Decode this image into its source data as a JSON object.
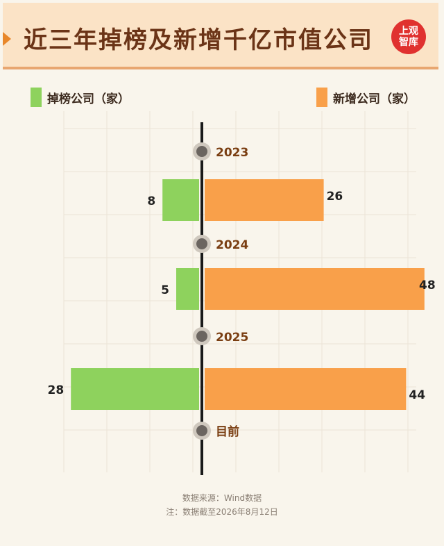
{
  "header": {
    "title": "近三年掉榜及新增千亿市值公司",
    "logo_line1": "上观",
    "logo_line2": "智库"
  },
  "legend": {
    "left_label": "掉榜公司（家）",
    "right_label": "新增公司（家）"
  },
  "colors": {
    "dropped": "#8ed25d",
    "added": "#f9a04a",
    "axis": "#1a1a1a",
    "marker_outer": "#cfc8be",
    "marker_inner": "#6b6560",
    "year_text": "#7a3e12",
    "value_text": "#222222",
    "grid": "#ece4d6"
  },
  "chart_data": {
    "type": "bar",
    "orientation": "diverging-horizontal",
    "timeline_labels": [
      "2023",
      "2024",
      "2025",
      "目前"
    ],
    "periods": [
      "2023",
      "2024",
      "2025"
    ],
    "series": [
      {
        "name": "掉榜公司（家）",
        "side": "left",
        "values": [
          8,
          5,
          28
        ]
      },
      {
        "name": "新增公司（家）",
        "side": "right",
        "values": [
          26,
          48,
          44
        ]
      }
    ],
    "xlim": [
      -30,
      50
    ],
    "grid": true
  },
  "footer": {
    "source": "数据来源：Wind数据",
    "note": "注：数据截至2026年8月12日"
  }
}
